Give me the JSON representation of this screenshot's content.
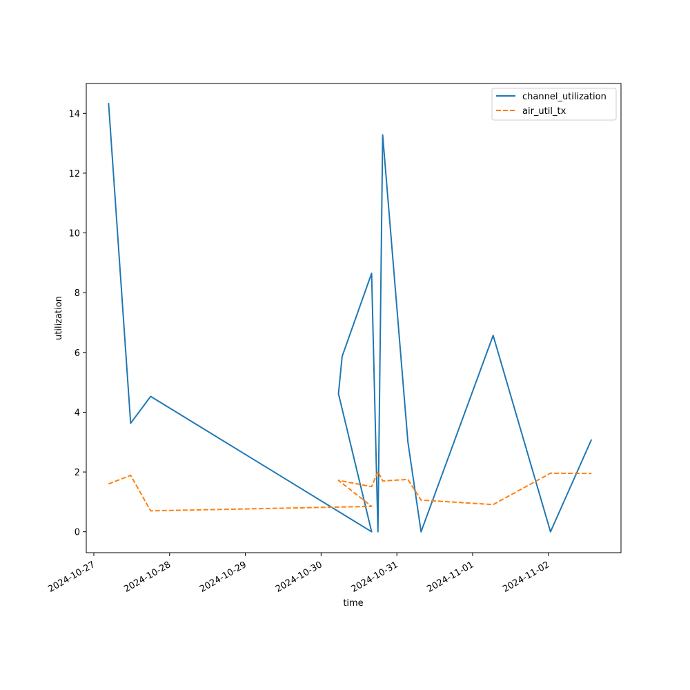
{
  "chart_data": {
    "type": "line",
    "title": "",
    "xlabel": "time",
    "ylabel": "utilization",
    "ylim": [
      -0.7,
      15.0
    ],
    "xlim": [
      "2024-10-26T21:36",
      "2024-11-02T23:00"
    ],
    "grid": false,
    "legend_position": "top-right",
    "x_ticks": [
      "2024-10-27",
      "2024-10-28",
      "2024-10-29",
      "2024-10-30",
      "2024-10-31",
      "2024-11-01",
      "2024-11-02"
    ],
    "y_ticks": [
      0,
      2,
      4,
      6,
      8,
      10,
      12,
      14
    ],
    "series": [
      {
        "name": "channel_utilization",
        "color": "#1f77b4",
        "dash": "solid",
        "points": [
          {
            "x": "2024-10-27T04:40",
            "y": 14.35
          },
          {
            "x": "2024-10-27T11:40",
            "y": 3.63
          },
          {
            "x": "2024-10-27T18:00",
            "y": 4.53
          },
          {
            "x": "2024-10-30T16:00",
            "y": 0.0
          },
          {
            "x": "2024-10-30T05:30",
            "y": 4.62
          },
          {
            "x": "2024-10-30T06:40",
            "y": 5.87
          },
          {
            "x": "2024-10-30T16:00",
            "y": 8.65
          },
          {
            "x": "2024-10-30T18:00",
            "y": 0.0
          },
          {
            "x": "2024-10-30T19:30",
            "y": 13.28
          },
          {
            "x": "2024-10-31T03:30",
            "y": 3.0
          },
          {
            "x": "2024-10-31T07:40",
            "y": 0.0
          },
          {
            "x": "2024-11-01T06:30",
            "y": 6.57
          },
          {
            "x": "2024-11-02T00:40",
            "y": 0.0
          },
          {
            "x": "2024-11-02T13:40",
            "y": 3.09
          }
        ]
      },
      {
        "name": "air_util_tx",
        "color": "#ff7f0e",
        "dash": "dashed",
        "points": [
          {
            "x": "2024-10-27T04:40",
            "y": 1.6
          },
          {
            "x": "2024-10-27T11:40",
            "y": 1.89
          },
          {
            "x": "2024-10-27T18:00",
            "y": 0.7
          },
          {
            "x": "2024-10-30T16:00",
            "y": 0.85
          },
          {
            "x": "2024-10-30T05:30",
            "y": 1.72
          },
          {
            "x": "2024-10-30T16:00",
            "y": 1.51
          },
          {
            "x": "2024-10-30T18:00",
            "y": 2.02
          },
          {
            "x": "2024-10-30T19:30",
            "y": 1.7
          },
          {
            "x": "2024-10-31T03:30",
            "y": 1.75
          },
          {
            "x": "2024-10-31T07:40",
            "y": 1.06
          },
          {
            "x": "2024-11-01T06:30",
            "y": 0.91
          },
          {
            "x": "2024-11-02T00:40",
            "y": 1.96
          },
          {
            "x": "2024-11-02T13:40",
            "y": 1.95
          }
        ]
      }
    ]
  }
}
